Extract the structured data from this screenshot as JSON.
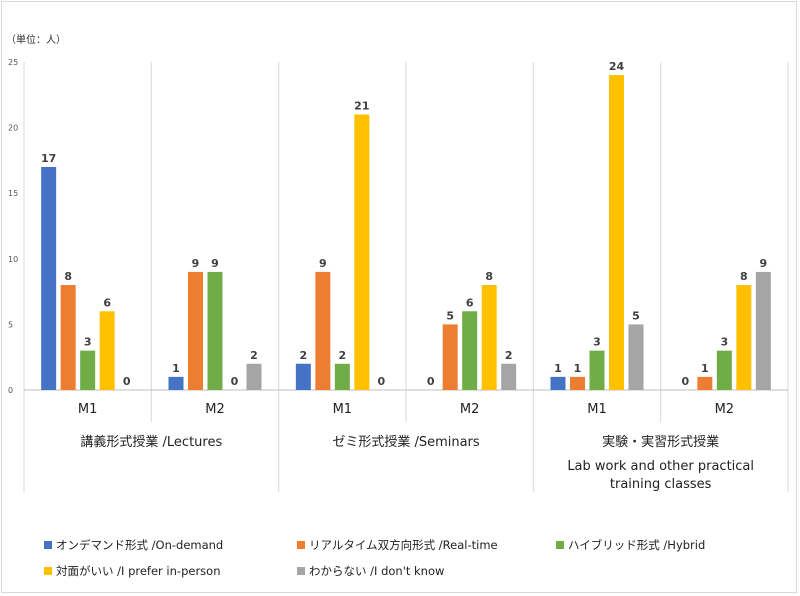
{
  "chart_data": {
    "type": "bar",
    "unit_label": "（単位：人）",
    "ylim": [
      0,
      25
    ],
    "yticks": [
      0,
      5,
      10,
      15,
      20,
      25
    ],
    "groups": [
      {
        "label": [
          "講義形式授業 /Lectures"
        ],
        "subcategories": [
          "M1",
          "M2"
        ]
      },
      {
        "label": [
          "ゼミ形式授業 /Seminars"
        ],
        "subcategories": [
          "M1",
          "M2"
        ]
      },
      {
        "label": [
          "実験・実習形式授業",
          "Lab work and other practical",
          "training classes"
        ],
        "subcategories": [
          "M1",
          "M2"
        ]
      }
    ],
    "series": [
      {
        "name": "オンデマンド形式 /On-demand",
        "color": "#4472c4",
        "values": [
          17,
          1,
          2,
          0,
          1,
          0
        ]
      },
      {
        "name": "リアルタイム双方向形式 /Real-time",
        "color": "#ed7d31",
        "values": [
          8,
          9,
          9,
          5,
          1,
          1
        ]
      },
      {
        "name": "ハイブリッド形式 /Hybrid",
        "color": "#70ad47",
        "values": [
          3,
          9,
          2,
          6,
          3,
          3
        ]
      },
      {
        "name": "対面がいい /I prefer in-person",
        "color": "#ffc000",
        "values": [
          6,
          0,
          21,
          8,
          24,
          8
        ]
      },
      {
        "name": "わからない /I don't know",
        "color": "#a5a5a5",
        "values": [
          0,
          2,
          0,
          2,
          5,
          9
        ]
      }
    ],
    "legend_position": "bottom"
  }
}
